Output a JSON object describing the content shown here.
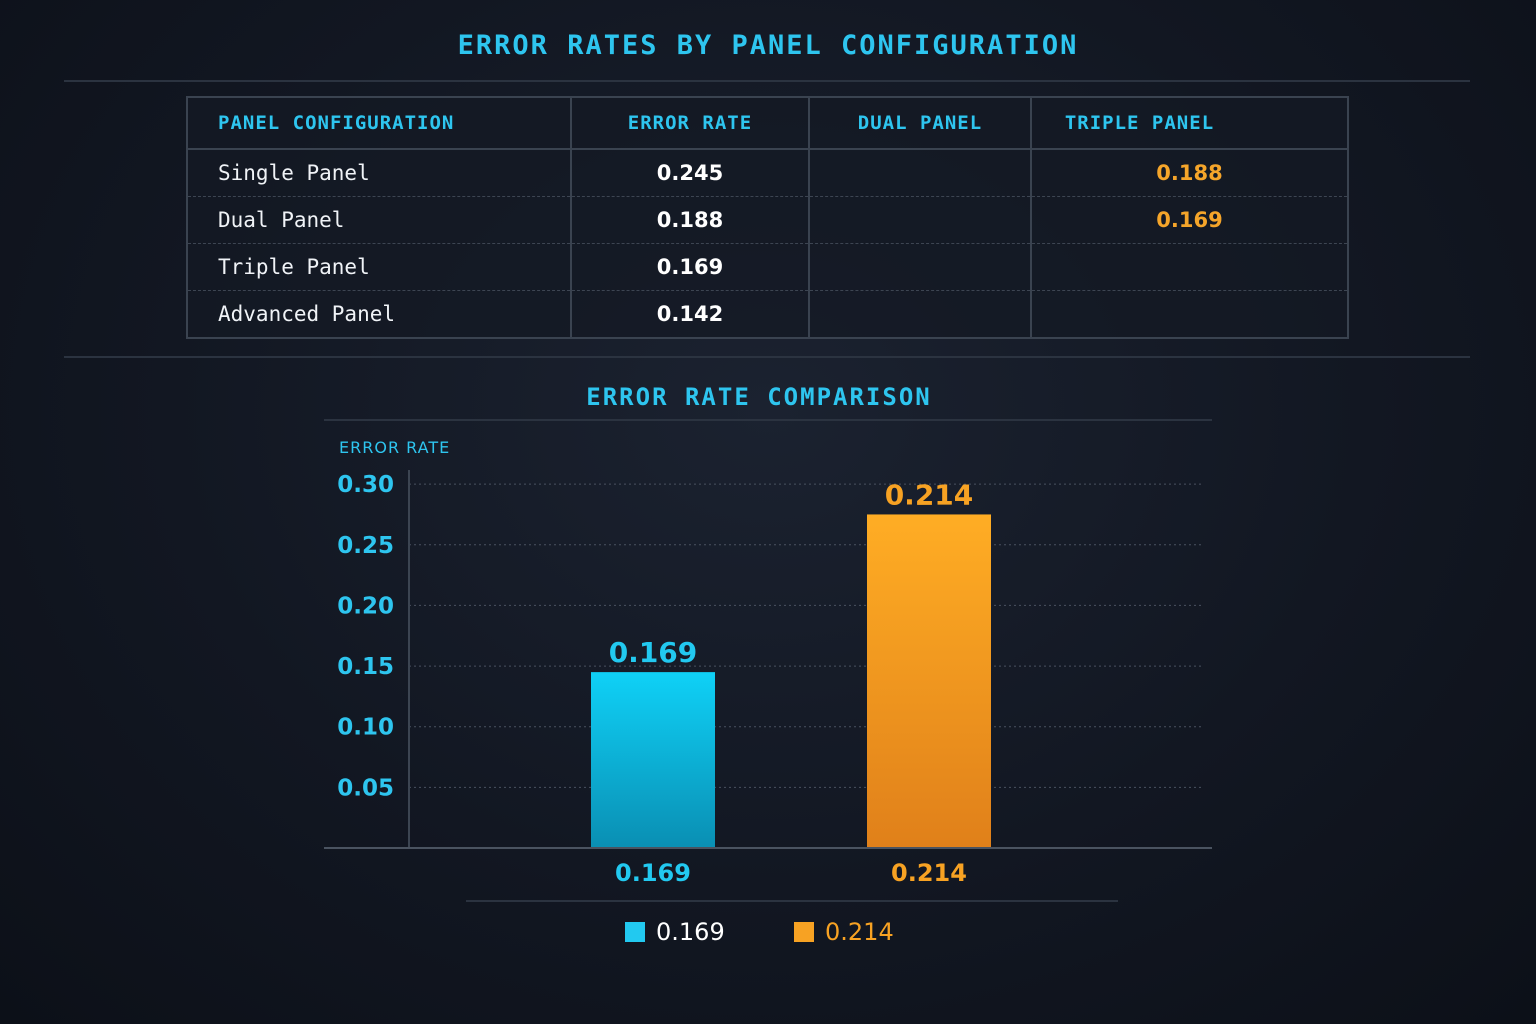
{
  "title": "ERROR RATES BY PANEL CONFIGURATION",
  "table": {
    "headers": [
      "PANEL CONFIGURATION",
      "ERROR RATE",
      "DUAL PANEL",
      "TRIPLE PANEL"
    ],
    "rows": [
      {
        "name": "Single Panel",
        "rate": "0.245",
        "dual": "",
        "triple": "0.188"
      },
      {
        "name": "Dual Panel",
        "rate": "0.188",
        "dual": "",
        "triple": "0.169"
      },
      {
        "name": "Triple Panel",
        "rate": "0.169",
        "dual": "",
        "triple": ""
      },
      {
        "name": "Advanced Panel",
        "rate": "0.142",
        "dual": "",
        "triple": ""
      }
    ]
  },
  "colors": {
    "cyan": "#22c9f0",
    "orange": "#f7a223",
    "accent": "#2ec5ef"
  },
  "chart_data": {
    "type": "bar",
    "title": "ERROR RATE COMPARISON",
    "ylabel": "ERROR RATE",
    "xlabel": "",
    "yticks": [
      "0.05",
      "0.10",
      "0.15",
      "0.20",
      "0.25",
      "0.30"
    ],
    "ylim": [
      0,
      0.31
    ],
    "grid": true,
    "categories": [
      "0.169",
      "0.214"
    ],
    "values": [
      0.169,
      0.214
    ],
    "data_labels": [
      "0.169",
      "0.214"
    ],
    "bar_colors": [
      "#22c9f0",
      "#f7a223"
    ],
    "legend": {
      "placement": "bottom",
      "entries": [
        "0.169",
        "0.214"
      ]
    }
  }
}
